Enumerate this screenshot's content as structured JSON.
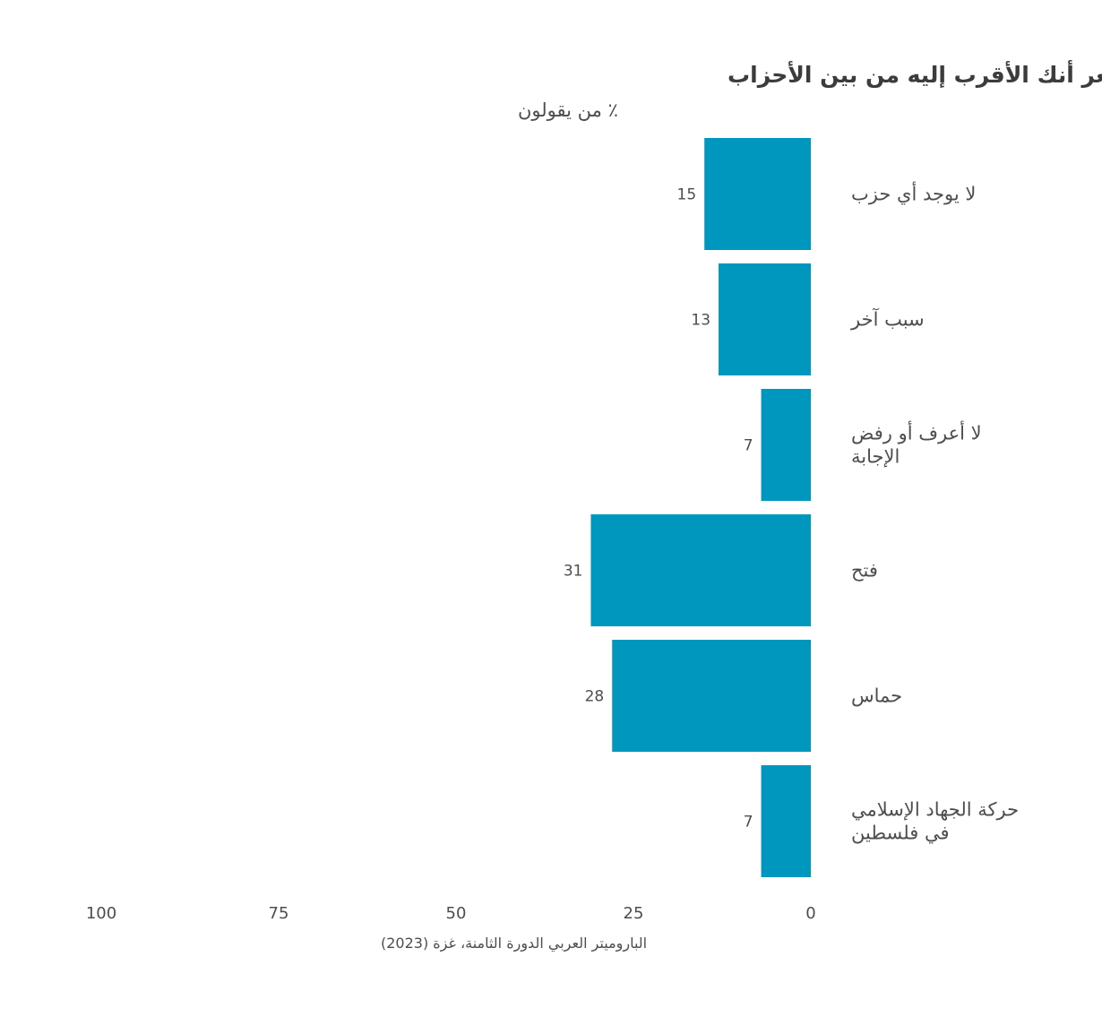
{
  "chart_data": {
    "type": "bar",
    "orientation": "horizontal",
    "direction": "rtl",
    "title": "الحزب الذي تشعر أنك الأقرب إليه من بين الأحزاب",
    "subtitle": "٪ من يقولون",
    "categories": [
      [
        "لا يوجد أي حزب"
      ],
      [
        "سبب آخر"
      ],
      [
        "لا أعرف أو رفض",
        "الإجابة"
      ],
      [
        "فتح"
      ],
      [
        "حماس"
      ],
      [
        "حركة الجهاد الإسلامي",
        "في فلسطين"
      ]
    ],
    "values": [
      15,
      13,
      7,
      31,
      28,
      7
    ],
    "xlim": [
      0,
      100
    ],
    "xticks": [
      0,
      25,
      50,
      75,
      100
    ],
    "grid": false,
    "legend": "none",
    "bar_color": "#0097bf",
    "source": "الباروميتر العربي الدورة الثامنة، غزة (2023)"
  }
}
